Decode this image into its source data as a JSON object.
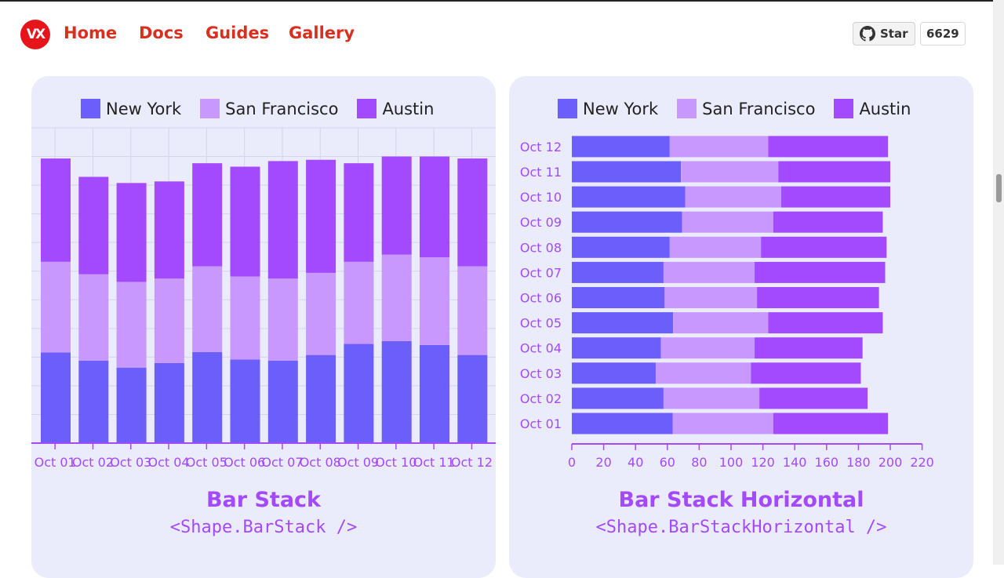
{
  "nav": {
    "logo": "VX",
    "items": [
      "Home",
      "Docs",
      "Guides",
      "Gallery"
    ]
  },
  "github": {
    "icon": "github-icon",
    "star_label": "Star",
    "count": "6629"
  },
  "colors": {
    "new_york": "#6c5efb",
    "san_francisco": "#c998ff",
    "austin": "#a44afe",
    "nav": "#d7301f",
    "card": "#eaebfb"
  },
  "cards": [
    {
      "title": "Bar Stack",
      "subtitle": "<Shape.BarStack />"
    },
    {
      "title": "Bar Stack Horizontal",
      "subtitle": "<Shape.BarStackHorizontal />"
    }
  ],
  "chart_data": [
    {
      "type": "bar",
      "stacked": true,
      "orientation": "vertical",
      "grid": true,
      "legend_placement": "top",
      "categories": [
        "Oct 01",
        "Oct 02",
        "Oct 03",
        "Oct 04",
        "Oct 05",
        "Oct 06",
        "Oct 07",
        "Oct 08",
        "Oct 09",
        "Oct 10",
        "Oct 11",
        "Oct 12"
      ],
      "series": [
        {
          "name": "New York",
          "values": [
            63.3,
            57.6,
            52.7,
            55.9,
            63.6,
            58.3,
            57.6,
            61.5,
            69.2,
            71.2,
            68.5,
            61.5
          ]
        },
        {
          "name": "San Francisco",
          "values": [
            63.2,
            60.2,
            59.8,
            58.9,
            59.8,
            58.0,
            57.2,
            57.3,
            57.3,
            60.3,
            61.2,
            61.9
          ]
        },
        {
          "name": "Austin",
          "values": [
            72.1,
            68.0,
            69.0,
            67.8,
            71.9,
            76.6,
            82.0,
            78.9,
            68.8,
            68.5,
            70.3,
            75.2
          ]
        }
      ],
      "ylim": [
        0,
        220
      ]
    },
    {
      "type": "bar",
      "stacked": true,
      "orientation": "horizontal",
      "grid": false,
      "legend_placement": "top",
      "categories": [
        "Oct 01",
        "Oct 02",
        "Oct 03",
        "Oct 04",
        "Oct 05",
        "Oct 06",
        "Oct 07",
        "Oct 08",
        "Oct 09",
        "Oct 10",
        "Oct 11",
        "Oct 12"
      ],
      "series": [
        {
          "name": "New York",
          "values": [
            63.3,
            57.6,
            52.7,
            55.9,
            63.6,
            58.3,
            57.6,
            61.5,
            69.2,
            71.2,
            68.5,
            61.5
          ]
        },
        {
          "name": "San Francisco",
          "values": [
            63.2,
            60.2,
            59.8,
            58.9,
            59.8,
            58.0,
            57.2,
            57.3,
            57.3,
            60.3,
            61.2,
            61.9
          ]
        },
        {
          "name": "Austin",
          "values": [
            72.1,
            68.0,
            69.0,
            67.8,
            71.9,
            76.6,
            82.0,
            78.9,
            68.8,
            68.5,
            70.3,
            75.2
          ]
        }
      ],
      "xlim": [
        0,
        220
      ],
      "xticks": [
        "0",
        "20",
        "40",
        "60",
        "80",
        "100",
        "120",
        "140",
        "160",
        "180",
        "200",
        "220"
      ]
    }
  ]
}
